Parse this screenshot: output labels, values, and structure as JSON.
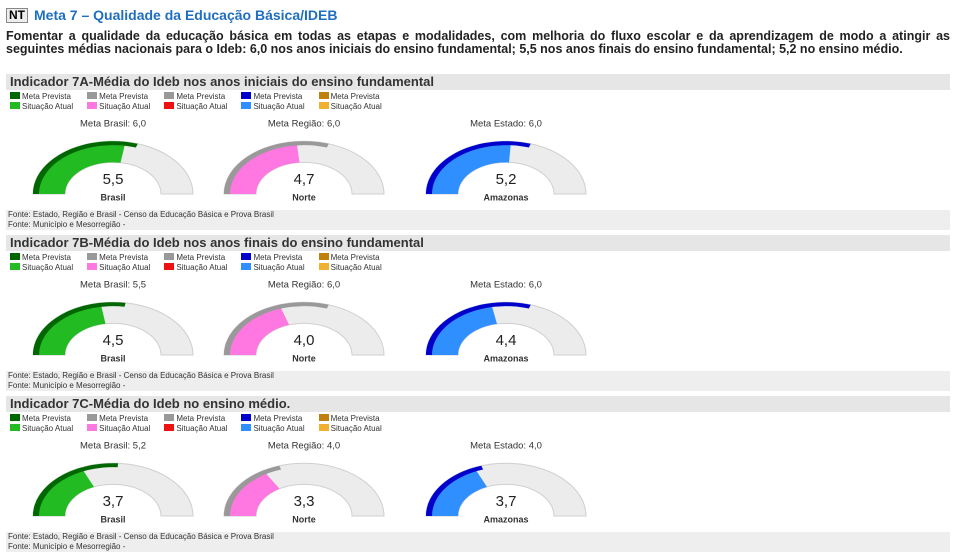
{
  "header": {
    "badge": "NT",
    "title": "Meta 7 – Qualidade da Educação Básica/IDEB"
  },
  "intro": "Fomentar a qualidade da educação básica em todas as etapas e modalidades, com melhoria do fluxo escolar e da aprendizagem de modo a atingir as seguintes médias nacionais para o Ideb: 6,0 nos anos iniciais do ensino fundamental; 5,5 nos anos finais do ensino fundamental; 5,2 no ensino médio.",
  "indicators": [
    {
      "title": "Indicador 7A-Média do Ideb nos anos iniciais do ensino fundamental",
      "legend": [
        {
          "meta": "Meta Prevista",
          "meta_color": "#006600",
          "value": "Situação Atual",
          "value_color": "#22bb22"
        },
        {
          "meta": "Meta Prevista",
          "meta_color": "#999999",
          "value": "Situação Atual",
          "value_color": "#ff77e0"
        },
        {
          "meta": "Meta Prevista",
          "meta_color": "#999999",
          "value": "Situação Atual",
          "value_color": "#ee1111"
        },
        {
          "meta": "Meta Prevista",
          "meta_color": "#0000cc",
          "value": "Situação Atual",
          "value_color": "#2f8fff"
        },
        {
          "meta": "Meta Prevista",
          "meta_color": "#c08010",
          "value": "Situação Atual",
          "value_color": "#f0b030"
        }
      ],
      "charts": [
        {
          "type": "gauge",
          "ylim": [
            0,
            10
          ],
          "meta": 6.0,
          "meta_label": "Meta Brasil: 6,0",
          "value": 5.5,
          "value_label": "5,5",
          "name": "Brasil",
          "meta_color": "#006600",
          "value_color": "#22bb22"
        },
        {
          "type": "gauge",
          "ylim": [
            0,
            10
          ],
          "meta": 6.0,
          "meta_label": "Meta Região: 6,0",
          "value": 4.7,
          "value_label": "4,7",
          "name": "Norte",
          "meta_color": "#999999",
          "value_color": "#ff77e0"
        },
        {
          "type": "gauge",
          "ylim": [
            0,
            10
          ],
          "meta": 6.0,
          "meta_label": "Meta Estado: 6,0",
          "value": 5.2,
          "value_label": "5,2",
          "name": "Amazonas",
          "meta_color": "#0000cc",
          "value_color": "#2f8fff"
        }
      ],
      "sources": [
        "Fonte: Estado, Região e Brasil - Censo da Educação Básica e Prova Brasil",
        "Fonte: Município e Mesorregião -"
      ]
    },
    {
      "title": "Indicador 7B-Média do Ideb nos anos finais do ensino fundamental",
      "legend": [
        {
          "meta": "Meta Prevista",
          "meta_color": "#006600",
          "value": "Situação Atual",
          "value_color": "#22bb22"
        },
        {
          "meta": "Meta Prevista",
          "meta_color": "#999999",
          "value": "Situação Atual",
          "value_color": "#ff77e0"
        },
        {
          "meta": "Meta Prevista",
          "meta_color": "#999999",
          "value": "Situação Atual",
          "value_color": "#ee1111"
        },
        {
          "meta": "Meta Prevista",
          "meta_color": "#0000cc",
          "value": "Situação Atual",
          "value_color": "#2f8fff"
        },
        {
          "meta": "Meta Prevista",
          "meta_color": "#c08010",
          "value": "Situação Atual",
          "value_color": "#f0b030"
        }
      ],
      "charts": [
        {
          "type": "gauge",
          "ylim": [
            0,
            10
          ],
          "meta": 5.5,
          "meta_label": "Meta Brasil: 5,5",
          "value": 4.5,
          "value_label": "4,5",
          "name": "Brasil",
          "meta_color": "#006600",
          "value_color": "#22bb22"
        },
        {
          "type": "gauge",
          "ylim": [
            0,
            10
          ],
          "meta": 6.0,
          "meta_label": "Meta Região: 6,0",
          "value": 4.0,
          "value_label": "4,0",
          "name": "Norte",
          "meta_color": "#999999",
          "value_color": "#ff77e0"
        },
        {
          "type": "gauge",
          "ylim": [
            0,
            10
          ],
          "meta": 6.0,
          "meta_label": "Meta Estado: 6,0",
          "value": 4.4,
          "value_label": "4,4",
          "name": "Amazonas",
          "meta_color": "#0000cc",
          "value_color": "#2f8fff"
        }
      ],
      "sources": [
        "Fonte: Estado, Região e Brasil - Censo da Educação Básica e Prova Brasil",
        "Fonte: Município e Mesorregião -"
      ]
    },
    {
      "title": "Indicador 7C-Média do Ideb no ensino médio.",
      "legend": [
        {
          "meta": "Meta Prevista",
          "meta_color": "#006600",
          "value": "Situação Atual",
          "value_color": "#22bb22"
        },
        {
          "meta": "Meta Prevista",
          "meta_color": "#999999",
          "value": "Situação Atual",
          "value_color": "#ff77e0"
        },
        {
          "meta": "Meta Prevista",
          "meta_color": "#999999",
          "value": "Situação Atual",
          "value_color": "#ee1111"
        },
        {
          "meta": "Meta Prevista",
          "meta_color": "#0000cc",
          "value": "Situação Atual",
          "value_color": "#2f8fff"
        },
        {
          "meta": "Meta Prevista",
          "meta_color": "#c08010",
          "value": "Situação Atual",
          "value_color": "#f0b030"
        }
      ],
      "charts": [
        {
          "type": "gauge",
          "ylim": [
            0,
            10
          ],
          "meta": 5.2,
          "meta_label": "Meta Brasil: 5,2",
          "value": 3.7,
          "value_label": "3,7",
          "name": "Brasil",
          "meta_color": "#006600",
          "value_color": "#22bb22"
        },
        {
          "type": "gauge",
          "ylim": [
            0,
            10
          ],
          "meta": 4.0,
          "meta_label": "Meta Região: 4,0",
          "value": 3.3,
          "value_label": "3,3",
          "name": "Norte",
          "meta_color": "#999999",
          "value_color": "#ff77e0"
        },
        {
          "type": "gauge",
          "ylim": [
            0,
            10
          ],
          "meta": 4.0,
          "meta_label": "Meta Estado: 4,0",
          "value": 3.7,
          "value_label": "3,7",
          "name": "Amazonas",
          "meta_color": "#0000cc",
          "value_color": "#2f8fff"
        }
      ],
      "sources": [
        "Fonte: Estado, Região e Brasil - Censo da Educação Básica e Prova Brasil",
        "Fonte: Município e Mesorregião -"
      ]
    }
  ]
}
